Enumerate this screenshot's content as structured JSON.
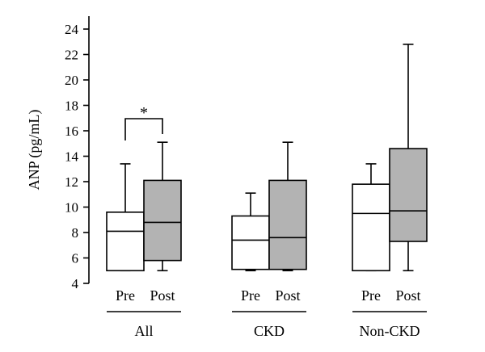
{
  "chart_data": {
    "type": "box",
    "ylabel": "ANP (pg/mL)",
    "ylim": [
      4,
      24
    ],
    "yticks": [
      4,
      6,
      8,
      10,
      12,
      14,
      16,
      18,
      20,
      22,
      24
    ],
    "grid": false,
    "groups": [
      {
        "label": "All",
        "boxes": [
          {
            "category": "Pre",
            "fill": "#ffffff",
            "min": 5.0,
            "q1": 5.0,
            "median": 8.1,
            "q3": 9.6,
            "max": 13.4
          },
          {
            "category": "Post",
            "fill": "#b3b3b3",
            "min": 5.0,
            "q1": 5.8,
            "median": 8.8,
            "q3": 12.1,
            "max": 15.1
          }
        ],
        "significance": "*"
      },
      {
        "label": "CKD",
        "boxes": [
          {
            "category": "Pre",
            "fill": "#ffffff",
            "min": 5.0,
            "q1": 5.1,
            "median": 7.4,
            "q3": 9.3,
            "max": 11.1
          },
          {
            "category": "Post",
            "fill": "#b3b3b3",
            "min": 5.0,
            "q1": 5.1,
            "median": 7.6,
            "q3": 12.1,
            "max": 15.1
          }
        ]
      },
      {
        "label": "Non-CKD",
        "boxes": [
          {
            "category": "Pre",
            "fill": "#ffffff",
            "min": 5.0,
            "q1": 5.0,
            "median": 9.5,
            "q3": 11.8,
            "max": 13.4
          },
          {
            "category": "Post",
            "fill": "#b3b3b3",
            "min": 5.0,
            "q1": 7.3,
            "median": 9.7,
            "q3": 14.6,
            "max": 22.8
          }
        ]
      }
    ]
  }
}
